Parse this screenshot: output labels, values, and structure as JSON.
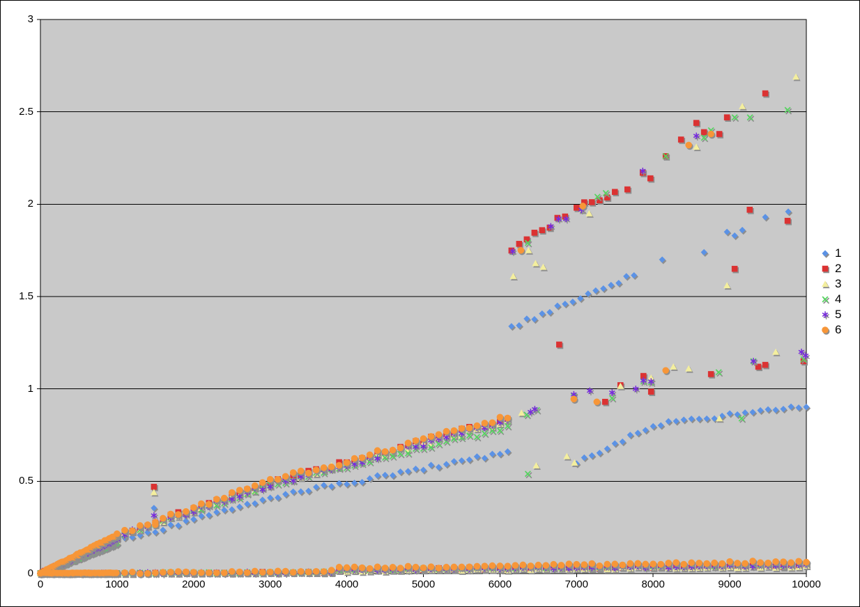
{
  "chart": {
    "title": "",
    "background": "#FFFFFF",
    "plot_background": "#C9C9C9",
    "border_color": "#000000",
    "gridline_color": "#000000",
    "shadow_color": "#8E8E8E",
    "axis": {
      "x": {
        "labels": [
          "0",
          "1000",
          "2000",
          "3000",
          "4000",
          "5000",
          "6000",
          "7000",
          "8000",
          "9000",
          "10000"
        ]
      },
      "y": {
        "labels": [
          "3",
          "2.5",
          "2",
          "1.5",
          "1",
          "0.5",
          "0"
        ]
      }
    },
    "legend": {
      "position": "right",
      "entries": [
        "1",
        "2",
        "3",
        "4",
        "5",
        "6"
      ]
    }
  },
  "chart_data": {
    "type": "scatter",
    "title": "",
    "xlabel": "",
    "ylabel": "",
    "xlim": [
      0,
      10000
    ],
    "ylim": [
      0,
      3
    ],
    "x_tick_step": 1000,
    "y_tick_step": 0.5,
    "grid": "horizontal",
    "legend_position": "right",
    "series": [
      {
        "name": "1",
        "marker": "diamond",
        "color": "#5B92E5",
        "segments": [
          {
            "x0": 0,
            "x1": 1000,
            "step": 20,
            "y0": 0,
            "y1": 0.16,
            "jitter": 0.005
          },
          {
            "x0": 0,
            "x1": 1000,
            "step": 25,
            "y0": 0.002,
            "y1": 0.002,
            "jitter": 0.002
          },
          {
            "x0": 1000,
            "x1": 3000,
            "step": 100,
            "y0": 0.175,
            "y1": 0.41,
            "jitter": 0.01
          },
          {
            "x0": 3100,
            "x1": 6100,
            "step": 100,
            "y0": 0.42,
            "y1": 0.655,
            "jitter": 0.012
          },
          {
            "x0": 1100,
            "x1": 3800,
            "step": 100,
            "y0": 0.002,
            "y1": 0.007,
            "jitter": 0.004
          },
          {
            "x0": 3900,
            "x1": 10000,
            "step": 100,
            "y0": 0.018,
            "y1": 0.045,
            "jitter": 0.007
          },
          {
            "x0": 6150,
            "x1": 7800,
            "step": 100,
            "y0": 1.335,
            "y1": 1.625,
            "jitter": 0.012
          },
          {
            "x0": 7000,
            "x1": 8000,
            "step": 100,
            "y0": 0.6,
            "y1": 0.8,
            "jitter": 0.012
          },
          {
            "x0": 8100,
            "x1": 10000,
            "step": 100,
            "y0": 0.81,
            "y1": 0.91,
            "jitter": 0.01
          }
        ],
        "points": [
          [
            1482,
            0.355
          ],
          [
            8118,
            1.7
          ],
          [
            8664,
            1.74
          ],
          [
            8964,
            1.85
          ],
          [
            9064,
            1.83
          ],
          [
            9164,
            1.86
          ],
          [
            9464,
            1.93
          ],
          [
            9764,
            1.96
          ]
        ]
      },
      {
        "name": "2",
        "marker": "square",
        "color": "#DB3232",
        "segments": [
          {
            "x0": 0,
            "x1": 1000,
            "step": 20,
            "y0": 0,
            "y1": 0.19,
            "jitter": 0.005
          },
          {
            "x0": 0,
            "x1": 1000,
            "step": 25,
            "y0": 0.002,
            "y1": 0.002,
            "jitter": 0.002
          },
          {
            "x0": 1000,
            "x1": 3000,
            "step": 100,
            "y0": 0.21,
            "y1": 0.49,
            "jitter": 0.012
          },
          {
            "x0": 3100,
            "x1": 6100,
            "step": 100,
            "y0": 0.5,
            "y1": 0.84,
            "jitter": 0.015
          },
          {
            "x0": 1100,
            "x1": 3800,
            "step": 100,
            "y0": 0.002,
            "y1": 0.008,
            "jitter": 0.004
          },
          {
            "x0": 3900,
            "x1": 10000,
            "step": 100,
            "y0": 0.02,
            "y1": 0.042,
            "jitter": 0.006
          },
          {
            "x0": 6150,
            "x1": 6900,
            "step": 100,
            "y0": 1.755,
            "y1": 1.95,
            "jitter": 0.015
          },
          {
            "x0": 7000,
            "x1": 7550,
            "step": 100,
            "y0": 1.99,
            "y1": 2.06,
            "jitter": 0.015
          }
        ],
        "points": [
          [
            1482,
            0.47
          ],
          [
            6773,
            1.24
          ],
          [
            7664,
            2.08
          ],
          [
            7864,
            2.17
          ],
          [
            7964,
            2.14
          ],
          [
            8164,
            2.26
          ],
          [
            8364,
            2.35
          ],
          [
            8564,
            2.44
          ],
          [
            8664,
            2.39
          ],
          [
            8864,
            2.38
          ],
          [
            8964,
            2.47
          ],
          [
            9261,
            1.97
          ],
          [
            9464,
            2.6
          ],
          [
            9755,
            1.91
          ],
          [
            9064,
            1.65
          ],
          [
            7373,
            0.93
          ],
          [
            7573,
            1.02
          ],
          [
            7873,
            1.07
          ],
          [
            7973,
            0.985
          ],
          [
            8755,
            1.08
          ],
          [
            9373,
            1.12
          ],
          [
            9464,
            1.13
          ],
          [
            9964,
            1.15
          ]
        ]
      },
      {
        "name": "3",
        "marker": "triangle",
        "color": "#F3EE9E",
        "segments": [
          {
            "x0": 0,
            "x1": 1000,
            "step": 20,
            "y0": 0,
            "y1": 0.178,
            "jitter": 0.005
          },
          {
            "x0": 0,
            "x1": 1000,
            "step": 25,
            "y0": 0.002,
            "y1": 0.002,
            "jitter": 0.002
          },
          {
            "x0": 1000,
            "x1": 3000,
            "step": 100,
            "y0": 0.205,
            "y1": 0.485,
            "jitter": 0.012
          },
          {
            "x0": 3100,
            "x1": 6100,
            "step": 100,
            "y0": 0.495,
            "y1": 0.825,
            "jitter": 0.014
          },
          {
            "x0": 1100,
            "x1": 3800,
            "step": 100,
            "y0": 0.002,
            "y1": 0.008,
            "jitter": 0.004
          },
          {
            "x0": 3900,
            "x1": 10000,
            "step": 100,
            "y0": 0.015,
            "y1": 0.038,
            "jitter": 0.006
          }
        ],
        "points": [
          [
            1482,
            0.44
          ],
          [
            6173,
            1.61
          ],
          [
            6373,
            1.75
          ],
          [
            6464,
            1.68
          ],
          [
            6564,
            1.66
          ],
          [
            7073,
            1.97
          ],
          [
            7164,
            1.95
          ],
          [
            8564,
            2.31
          ],
          [
            9164,
            2.53
          ],
          [
            9864,
            2.69
          ],
          [
            6282,
            0.87
          ],
          [
            7573,
            1.015
          ],
          [
            7973,
            1.06
          ],
          [
            8264,
            1.12
          ],
          [
            8464,
            1.11
          ],
          [
            9600,
            1.2
          ],
          [
            6473,
            0.585
          ],
          [
            6873,
            0.635
          ],
          [
            6973,
            0.6
          ],
          [
            8864,
            0.84
          ],
          [
            8964,
            1.56
          ]
        ]
      },
      {
        "name": "4",
        "marker": "x",
        "color": "#55D45F",
        "segments": [
          {
            "x0": 0,
            "x1": 1000,
            "step": 20,
            "y0": 0,
            "y1": 0.17,
            "jitter": 0.005
          },
          {
            "x0": 0,
            "x1": 1000,
            "step": 25,
            "y0": 0.002,
            "y1": 0.002,
            "jitter": 0.002
          },
          {
            "x0": 1000,
            "x1": 3000,
            "step": 100,
            "y0": 0.195,
            "y1": 0.475,
            "jitter": 0.012
          },
          {
            "x0": 3100,
            "x1": 6100,
            "step": 100,
            "y0": 0.485,
            "y1": 0.79,
            "jitter": 0.012
          },
          {
            "x0": 1100,
            "x1": 3800,
            "step": 100,
            "y0": 0.002,
            "y1": 0.008,
            "jitter": 0.004
          },
          {
            "x0": 3900,
            "x1": 10000,
            "step": 100,
            "y0": 0.022,
            "y1": 0.05,
            "jitter": 0.006
          }
        ],
        "points": [
          [
            6364,
            1.79
          ],
          [
            7273,
            2.04
          ],
          [
            7382,
            2.06
          ],
          [
            8164,
            2.26
          ],
          [
            8664,
            2.36
          ],
          [
            8755,
            2.4
          ],
          [
            9064,
            2.47
          ],
          [
            9264,
            2.47
          ],
          [
            9755,
            2.51
          ],
          [
            6350,
            0.86
          ],
          [
            6482,
            0.885
          ],
          [
            6964,
            0.96
          ],
          [
            7464,
            0.95
          ],
          [
            7873,
            1.04
          ],
          [
            7973,
            1.035
          ],
          [
            8855,
            1.09
          ],
          [
            9309,
            1.15
          ],
          [
            9964,
            1.16
          ],
          [
            6364,
            0.54
          ],
          [
            9155,
            0.84
          ]
        ]
      },
      {
        "name": "5",
        "marker": "star",
        "color": "#7729E0",
        "segments": [
          {
            "x0": 0,
            "x1": 1000,
            "step": 20,
            "y0": 0,
            "y1": 0.183,
            "jitter": 0.005
          },
          {
            "x0": 0,
            "x1": 1000,
            "step": 25,
            "y0": 0.002,
            "y1": 0.002,
            "jitter": 0.002
          },
          {
            "x0": 1000,
            "x1": 3000,
            "step": 100,
            "y0": 0.205,
            "y1": 0.48,
            "jitter": 0.012
          },
          {
            "x0": 3100,
            "x1": 6100,
            "step": 100,
            "y0": 0.49,
            "y1": 0.825,
            "jitter": 0.014
          },
          {
            "x0": 1100,
            "x1": 3800,
            "step": 100,
            "y0": 0.002,
            "y1": 0.008,
            "jitter": 0.004
          },
          {
            "x0": 3900,
            "x1": 10000,
            "step": 100,
            "y0": 0.02,
            "y1": 0.046,
            "jitter": 0.006
          }
        ],
        "points": [
          [
            1482,
            0.315
          ],
          [
            6164,
            1.745
          ],
          [
            6664,
            1.88
          ],
          [
            6764,
            1.92
          ],
          [
            6864,
            1.92
          ],
          [
            7064,
            1.97
          ],
          [
            7864,
            2.18
          ],
          [
            8564,
            2.37
          ],
          [
            6400,
            0.875
          ],
          [
            6455,
            0.89
          ],
          [
            6964,
            0.97
          ],
          [
            7173,
            0.99
          ],
          [
            7464,
            0.98
          ],
          [
            7773,
            1.0
          ],
          [
            7873,
            1.045
          ],
          [
            7973,
            1.04
          ],
          [
            9309,
            1.15
          ],
          [
            9936,
            1.2
          ],
          [
            9991,
            1.18
          ]
        ]
      },
      {
        "name": "6",
        "marker": "circle",
        "color": "#F79638",
        "segments": [
          {
            "x0": 0,
            "x1": 1000,
            "step": 20,
            "y0": 0,
            "y1": 0.21,
            "jitter": 0.006
          },
          {
            "x0": 0,
            "x1": 1000,
            "step": 15,
            "y0": 0.002,
            "y1": 0.003,
            "jitter": 0.002
          },
          {
            "x0": 1000,
            "x1": 3000,
            "step": 100,
            "y0": 0.215,
            "y1": 0.5,
            "jitter": 0.012
          },
          {
            "x0": 3100,
            "x1": 6100,
            "step": 100,
            "y0": 0.51,
            "y1": 0.845,
            "jitter": 0.015
          },
          {
            "x0": 1100,
            "x1": 3800,
            "step": 100,
            "y0": 0.004,
            "y1": 0.014,
            "jitter": 0.005
          },
          {
            "x0": 3900,
            "x1": 10000,
            "step": 100,
            "y0": 0.028,
            "y1": 0.066,
            "jitter": 0.007
          }
        ],
        "points": [
          [
            1500,
            0.265
          ],
          [
            6273,
            1.75
          ],
          [
            7082,
            1.99
          ],
          [
            8464,
            2.32
          ],
          [
            8755,
            2.38
          ],
          [
            6964,
            0.945
          ],
          [
            7264,
            0.93
          ],
          [
            8164,
            1.1
          ]
        ]
      }
    ]
  }
}
